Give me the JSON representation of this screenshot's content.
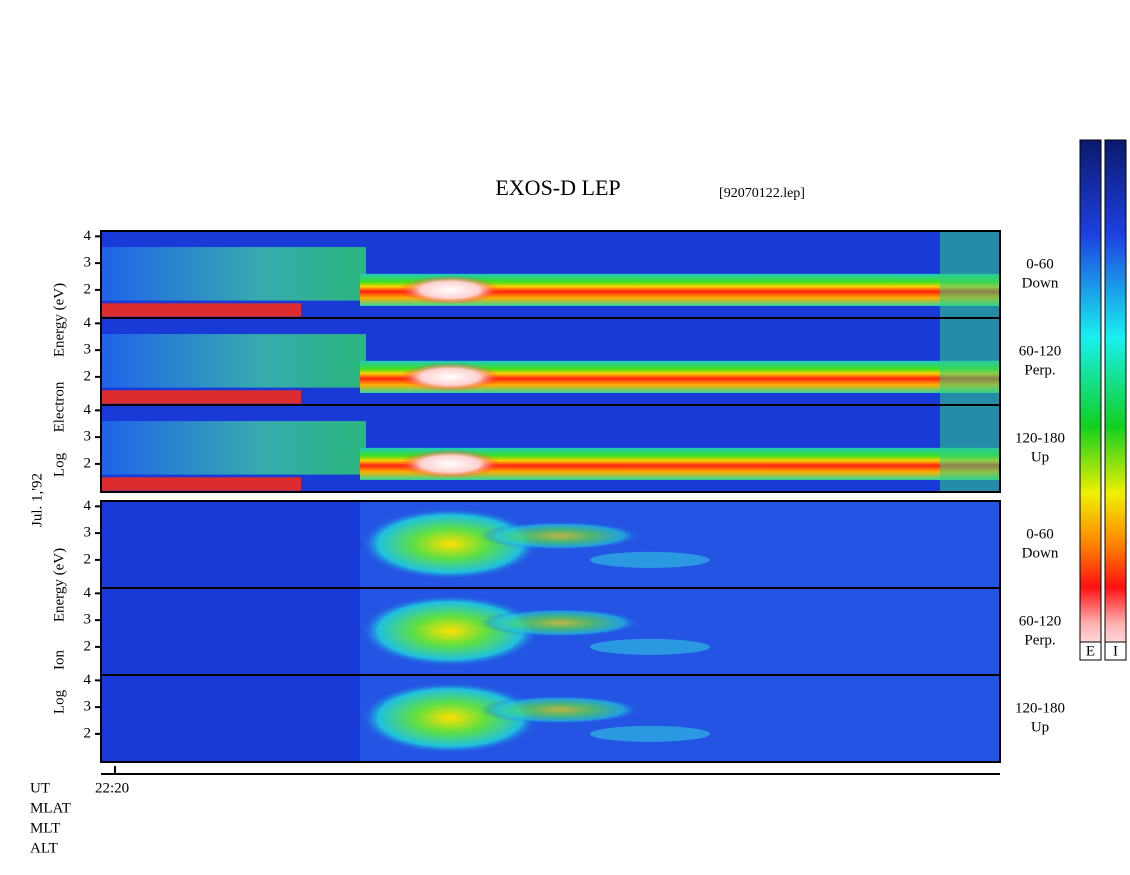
{
  "title": "EXOS-D LEP",
  "file": "[92070122.lep]",
  "date": "Jul. 1,'92",
  "groups": [
    {
      "axis_label": [
        "Log",
        "Electron",
        "Energy (eV)"
      ],
      "species": "electron"
    },
    {
      "axis_label": [
        "Log",
        "Ion",
        "Energy (eV)"
      ],
      "species": "ion"
    }
  ],
  "panels": [
    {
      "group": 0,
      "label": [
        "0-60",
        "Down"
      ],
      "ylim": [
        0.95,
        4.2
      ],
      "yticks": [
        2,
        3,
        4
      ]
    },
    {
      "group": 0,
      "label": [
        "60-120",
        "Perp."
      ],
      "ylim": [
        0.95,
        4.2
      ],
      "yticks": [
        2,
        3,
        4
      ]
    },
    {
      "group": 0,
      "label": [
        "120-180",
        "Up"
      ],
      "ylim": [
        0.95,
        4.2
      ],
      "yticks": [
        2,
        3,
        4
      ]
    },
    {
      "group": 1,
      "label": [
        "0-60",
        "Down"
      ],
      "ylim": [
        0.95,
        4.2
      ],
      "yticks": [
        2,
        3,
        4
      ]
    },
    {
      "group": 1,
      "label": [
        "60-120",
        "Perp."
      ],
      "ylim": [
        0.95,
        4.2
      ],
      "yticks": [
        2,
        3,
        4
      ]
    },
    {
      "group": 1,
      "label": [
        "120-180",
        "Up"
      ],
      "ylim": [
        0.95,
        4.2
      ],
      "yticks": [
        2,
        3,
        4
      ]
    }
  ],
  "time_ticks": [
    "22:20"
  ],
  "footer": [
    "UT",
    "MLAT",
    "MLT",
    "ALT"
  ],
  "colorbars": [
    "E",
    "I"
  ]
}
